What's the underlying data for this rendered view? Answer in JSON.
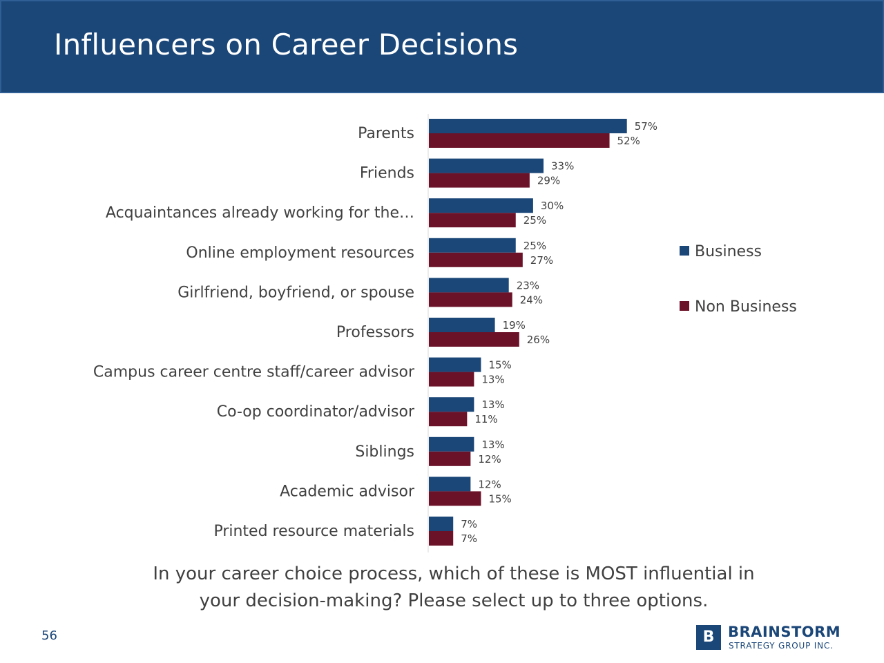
{
  "header": {
    "title": "Influencers on Career Decisions"
  },
  "chart_data": {
    "type": "bar",
    "orientation": "horizontal",
    "categories": [
      "Parents",
      "Friends",
      "Acquaintances already working for the…",
      "Online employment resources",
      "Girlfriend, boyfriend, or spouse",
      "Professors",
      "Campus career centre staff/career advisor",
      "Co-op coordinator/advisor",
      "Siblings",
      "Academic advisor",
      "Printed resource materials"
    ],
    "series": [
      {
        "name": "Business",
        "color": "#1a4678",
        "values": [
          57,
          33,
          30,
          25,
          23,
          19,
          15,
          13,
          13,
          12,
          7
        ],
        "labels": [
          "57%",
          "33%",
          "30%",
          "25%",
          "23%",
          "19%",
          "15%",
          "13%",
          "13%",
          "12%",
          "7%"
        ]
      },
      {
        "name": "Non Business",
        "color": "#6b1228",
        "values": [
          52,
          29,
          25,
          27,
          24,
          26,
          13,
          11,
          12,
          15,
          7
        ],
        "labels": [
          "52%",
          "29%",
          "25%",
          "27%",
          "24%",
          "26%",
          "13%",
          "11%",
          "12%",
          "15%",
          "7%"
        ]
      }
    ],
    "xlim": [
      0,
      100
    ],
    "unit": "%",
    "grid": false,
    "legend_position": "right"
  },
  "question": {
    "line1": "In your career choice process, which of these is MOST influential in",
    "line2": "your decision-making? Please select up to three options."
  },
  "footer": {
    "page_number": "56",
    "logo_mark": "B",
    "logo_name": "BRAINSTORM",
    "logo_sub": "STRATEGY GROUP INC."
  }
}
